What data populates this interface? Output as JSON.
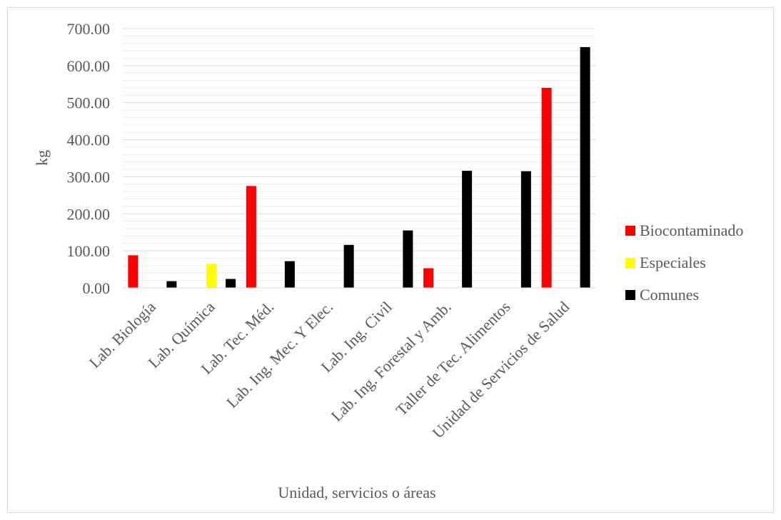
{
  "chart_data": {
    "type": "bar",
    "xlabel": "Unidad, servicios o áreas",
    "ylabel": "kg",
    "ylim": [
      0,
      700
    ],
    "ytick_step": 100,
    "minor_grid_step": 20,
    "ytick_labels": [
      "0.00",
      "100.00",
      "200.00",
      "300.00",
      "400.00",
      "500.00",
      "600.00",
      "700.00"
    ],
    "grid": true,
    "legend_position": "right",
    "categories": [
      "Lab. Biología",
      "Lab. Química",
      "Lab. Tec. Méd.",
      "Lab. Ing. Mec. Y Elec.",
      "Lab. Ing. Civil",
      "Lab. Ing. Forestal y Amb.",
      "Taller de Tec. Alimentos",
      "Unidad de Servicios de Salud"
    ],
    "series": [
      {
        "name": "Biocontaminado",
        "color": "#ff0000",
        "values": [
          88,
          0,
          275,
          0,
          0,
          53,
          0,
          540
        ]
      },
      {
        "name": "Especiales",
        "color": "#ffff00",
        "values": [
          0,
          65,
          0,
          0,
          0,
          0,
          0,
          0
        ]
      },
      {
        "name": "Comunes",
        "color": "#000000",
        "values": [
          18,
          24,
          72,
          116,
          155,
          316,
          315,
          650
        ]
      }
    ]
  }
}
